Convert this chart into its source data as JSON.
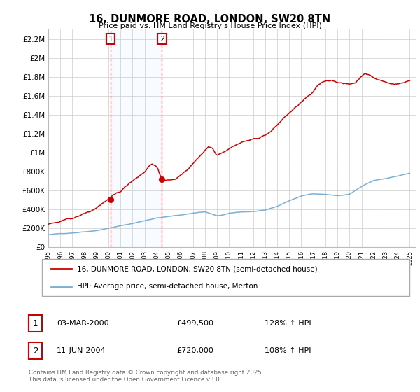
{
  "title": "16, DUNMORE ROAD, LONDON, SW20 8TN",
  "subtitle": "Price paid vs. HM Land Registry's House Price Index (HPI)",
  "background_color": "#ffffff",
  "plot_bg_color": "#ffffff",
  "grid_color": "#cccccc",
  "red_line_color": "#cc0000",
  "blue_line_color": "#7bafd4",
  "shade_color": "#ddeeff",
  "dashed_line_color": "#cc0000",
  "ylim": [
    0,
    2300000
  ],
  "yticks": [
    0,
    200000,
    400000,
    600000,
    800000,
    1000000,
    1200000,
    1400000,
    1600000,
    1800000,
    2000000,
    2200000
  ],
  "ytick_labels": [
    "£0",
    "£200K",
    "£400K",
    "£600K",
    "£800K",
    "£1M",
    "£1.2M",
    "£1.4M",
    "£1.6M",
    "£1.8M",
    "£2M",
    "£2.2M"
  ],
  "xstart_year": 1995,
  "xend_year": 2025,
  "sale1_year": 2000.17,
  "sale1_price": 499500,
  "sale2_year": 2004.44,
  "sale2_price": 720000,
  "sale1_label": "1",
  "sale2_label": "2",
  "legend_red": "16, DUNMORE ROAD, LONDON, SW20 8TN (semi-detached house)",
  "legend_blue": "HPI: Average price, semi-detached house, Merton",
  "footer": "Contains HM Land Registry data © Crown copyright and database right 2025.\nThis data is licensed under the Open Government Licence v3.0.",
  "table_rows": [
    {
      "num": "1",
      "date": "03-MAR-2000",
      "price": "£499,500",
      "hpi": "128% ↑ HPI"
    },
    {
      "num": "2",
      "date": "11-JUN-2004",
      "price": "£720,000",
      "hpi": "108% ↑ HPI"
    }
  ],
  "hpi_anchors_years": [
    1995,
    1997,
    1998,
    1999,
    2000,
    2001,
    2002,
    2003,
    2004,
    2005,
    2006,
    2007,
    2007.5,
    2008,
    2008.5,
    2009,
    2009.5,
    2010,
    2011,
    2012,
    2013,
    2014,
    2015,
    2016,
    2017,
    2018,
    2019,
    2020,
    2021,
    2022,
    2023,
    2024,
    2025
  ],
  "hpi_anchors_vals": [
    130000,
    150000,
    165000,
    180000,
    205000,
    230000,
    255000,
    285000,
    315000,
    330000,
    345000,
    365000,
    375000,
    380000,
    360000,
    335000,
    345000,
    360000,
    375000,
    380000,
    390000,
    430000,
    490000,
    540000,
    565000,
    560000,
    545000,
    560000,
    640000,
    700000,
    720000,
    750000,
    780000
  ],
  "red_anchors_years": [
    1995,
    1996,
    1997,
    1997.5,
    1998,
    1998.5,
    1999,
    1999.5,
    2000.17,
    2001,
    2001.5,
    2002,
    2002.5,
    2003,
    2003.3,
    2003.6,
    2003.9,
    2004.1,
    2004.2,
    2004.44,
    2004.7,
    2005,
    2005.5,
    2006,
    2006.5,
    2007,
    2007.3,
    2007.6,
    2008,
    2008.3,
    2008.6,
    2009,
    2009.5,
    2010,
    2010.5,
    2011,
    2011.5,
    2012,
    2012.5,
    2013,
    2013.5,
    2014,
    2014.5,
    2015,
    2015.5,
    2016,
    2016.5,
    2017,
    2017.3,
    2017.6,
    2018,
    2018.5,
    2019,
    2019.5,
    2020,
    2020.5,
    2021,
    2021.3,
    2021.6,
    2022,
    2022.3,
    2022.6,
    2023,
    2023.5,
    2024,
    2024.5,
    2025
  ],
  "red_anchors_vals": [
    240000,
    260000,
    290000,
    310000,
    340000,
    360000,
    400000,
    450000,
    499500,
    560000,
    620000,
    680000,
    730000,
    780000,
    840000,
    870000,
    850000,
    820000,
    780000,
    720000,
    700000,
    690000,
    710000,
    750000,
    800000,
    870000,
    920000,
    960000,
    1020000,
    1060000,
    1050000,
    980000,
    1020000,
    1060000,
    1100000,
    1130000,
    1150000,
    1160000,
    1180000,
    1210000,
    1250000,
    1310000,
    1380000,
    1440000,
    1490000,
    1550000,
    1600000,
    1640000,
    1700000,
    1730000,
    1760000,
    1770000,
    1760000,
    1740000,
    1730000,
    1750000,
    1820000,
    1860000,
    1840000,
    1810000,
    1790000,
    1780000,
    1760000,
    1740000,
    1750000,
    1760000,
    1780000
  ]
}
